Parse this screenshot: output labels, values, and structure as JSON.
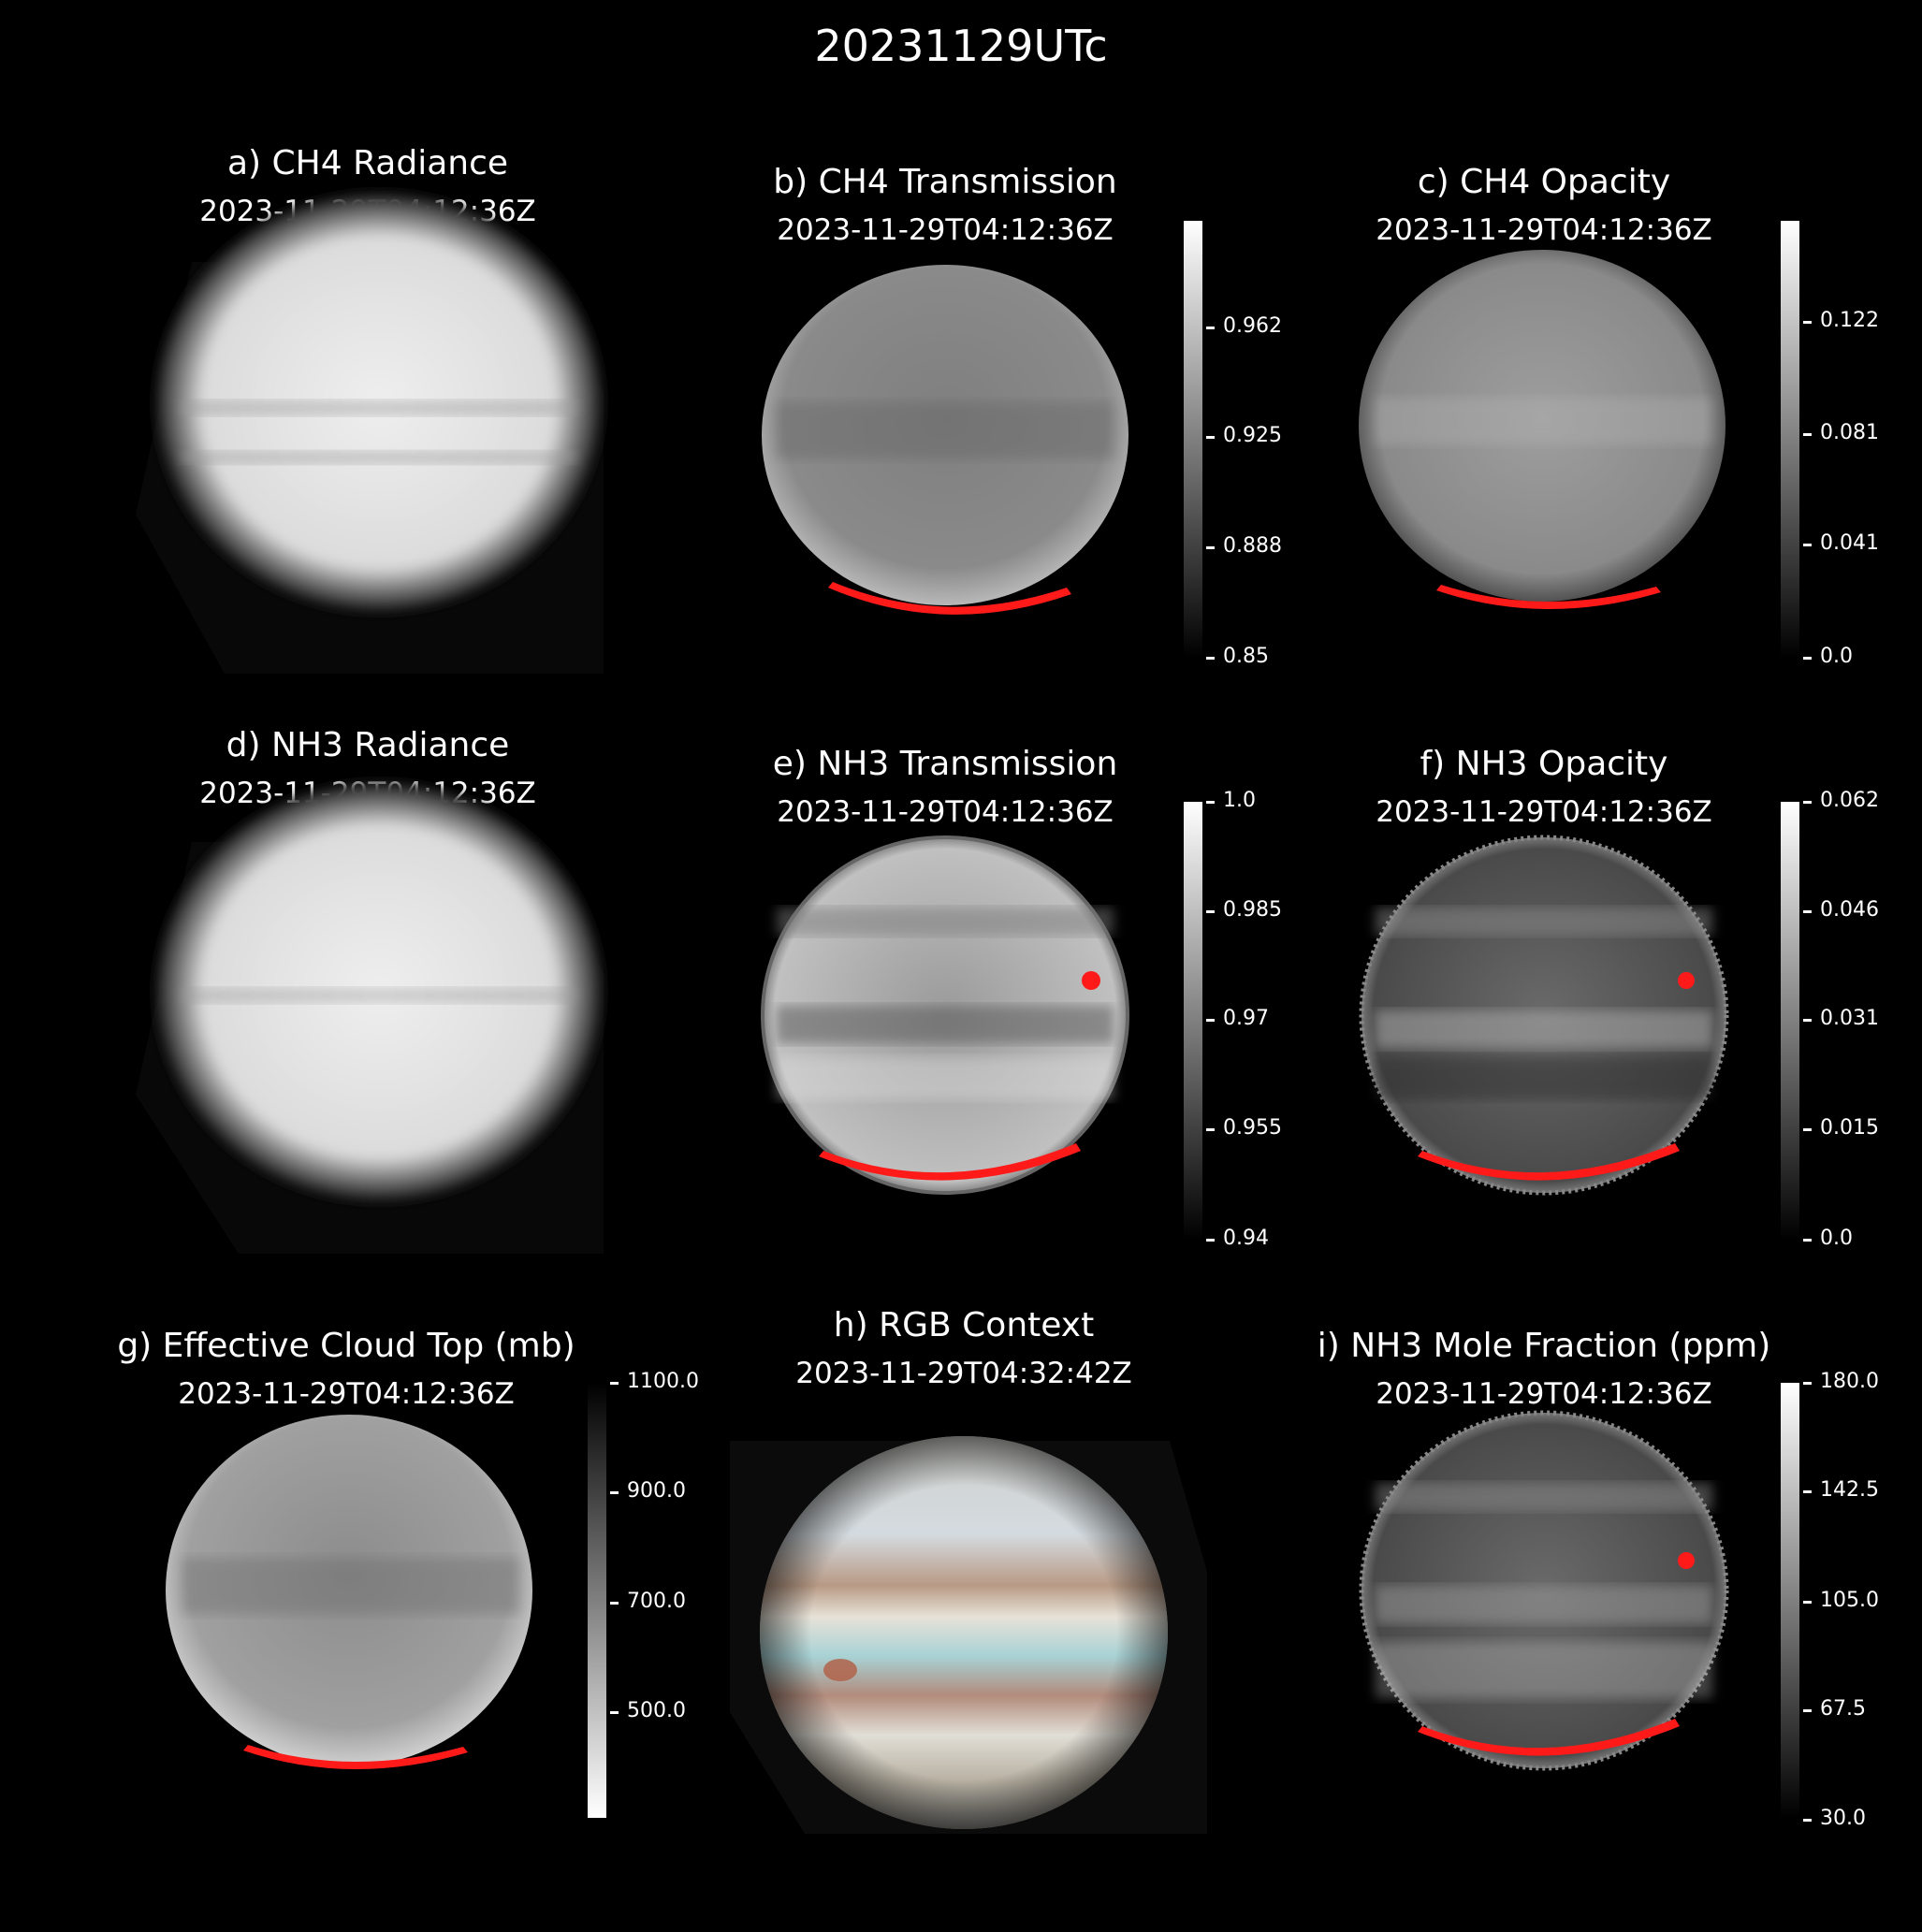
{
  "figure": {
    "title": "20231129UTc"
  },
  "panels": [
    {
      "title": "a) CH4 Radiance",
      "date": "2023-11-29T04:12:36Z",
      "colorbar": null
    },
    {
      "title": "b) CH4 Transmission",
      "date": "2023-11-29T04:12:36Z",
      "colorbar": {
        "ticks": [
          "0.962",
          "0.925",
          "0.888",
          "0.85"
        ],
        "range": [
          0.85,
          0.99
        ]
      }
    },
    {
      "title": "c) CH4 Opacity",
      "date": "2023-11-29T04:12:36Z",
      "colorbar": {
        "ticks": [
          "0.122",
          "0.081",
          "0.041",
          "0.0"
        ],
        "range": [
          0.0,
          0.16
        ]
      }
    },
    {
      "title": "d) NH3 Radiance",
      "date": "2023-11-29T04:12:36Z",
      "colorbar": null
    },
    {
      "title": "e) NH3 Transmission",
      "date": "2023-11-29T04:12:36Z",
      "colorbar": {
        "ticks": [
          "1.0",
          "0.985",
          "0.97",
          "0.955",
          "0.94"
        ],
        "range": [
          0.94,
          1.0
        ]
      }
    },
    {
      "title": "f) NH3 Opacity",
      "date": "2023-11-29T04:12:36Z",
      "colorbar": {
        "ticks": [
          "0.062",
          "0.046",
          "0.031",
          "0.015",
          "0.0"
        ],
        "range": [
          0.0,
          0.062
        ]
      }
    },
    {
      "title": "g) Effective Cloud Top (mb)",
      "date": "2023-11-29T04:12:36Z",
      "colorbar": {
        "ticks": [
          "1100.0",
          "900.0",
          "700.0",
          "500.0"
        ],
        "range": [
          300.0,
          1100.0
        ],
        "reversed": true
      }
    },
    {
      "title": "h) RGB Context",
      "date": "2023-11-29T04:32:42Z",
      "colorbar": null
    },
    {
      "title": "i) NH3 Mole Fraction (ppm)",
      "date": "2023-11-29T04:12:36Z",
      "colorbar": {
        "ticks": [
          "180.0",
          "142.5",
          "105.0",
          "67.5",
          "30.0"
        ],
        "range": [
          30.0,
          180.0
        ]
      }
    }
  ],
  "colors": {
    "background": "#000000",
    "mask": "#ff1a1a",
    "text": "#ffffff"
  }
}
